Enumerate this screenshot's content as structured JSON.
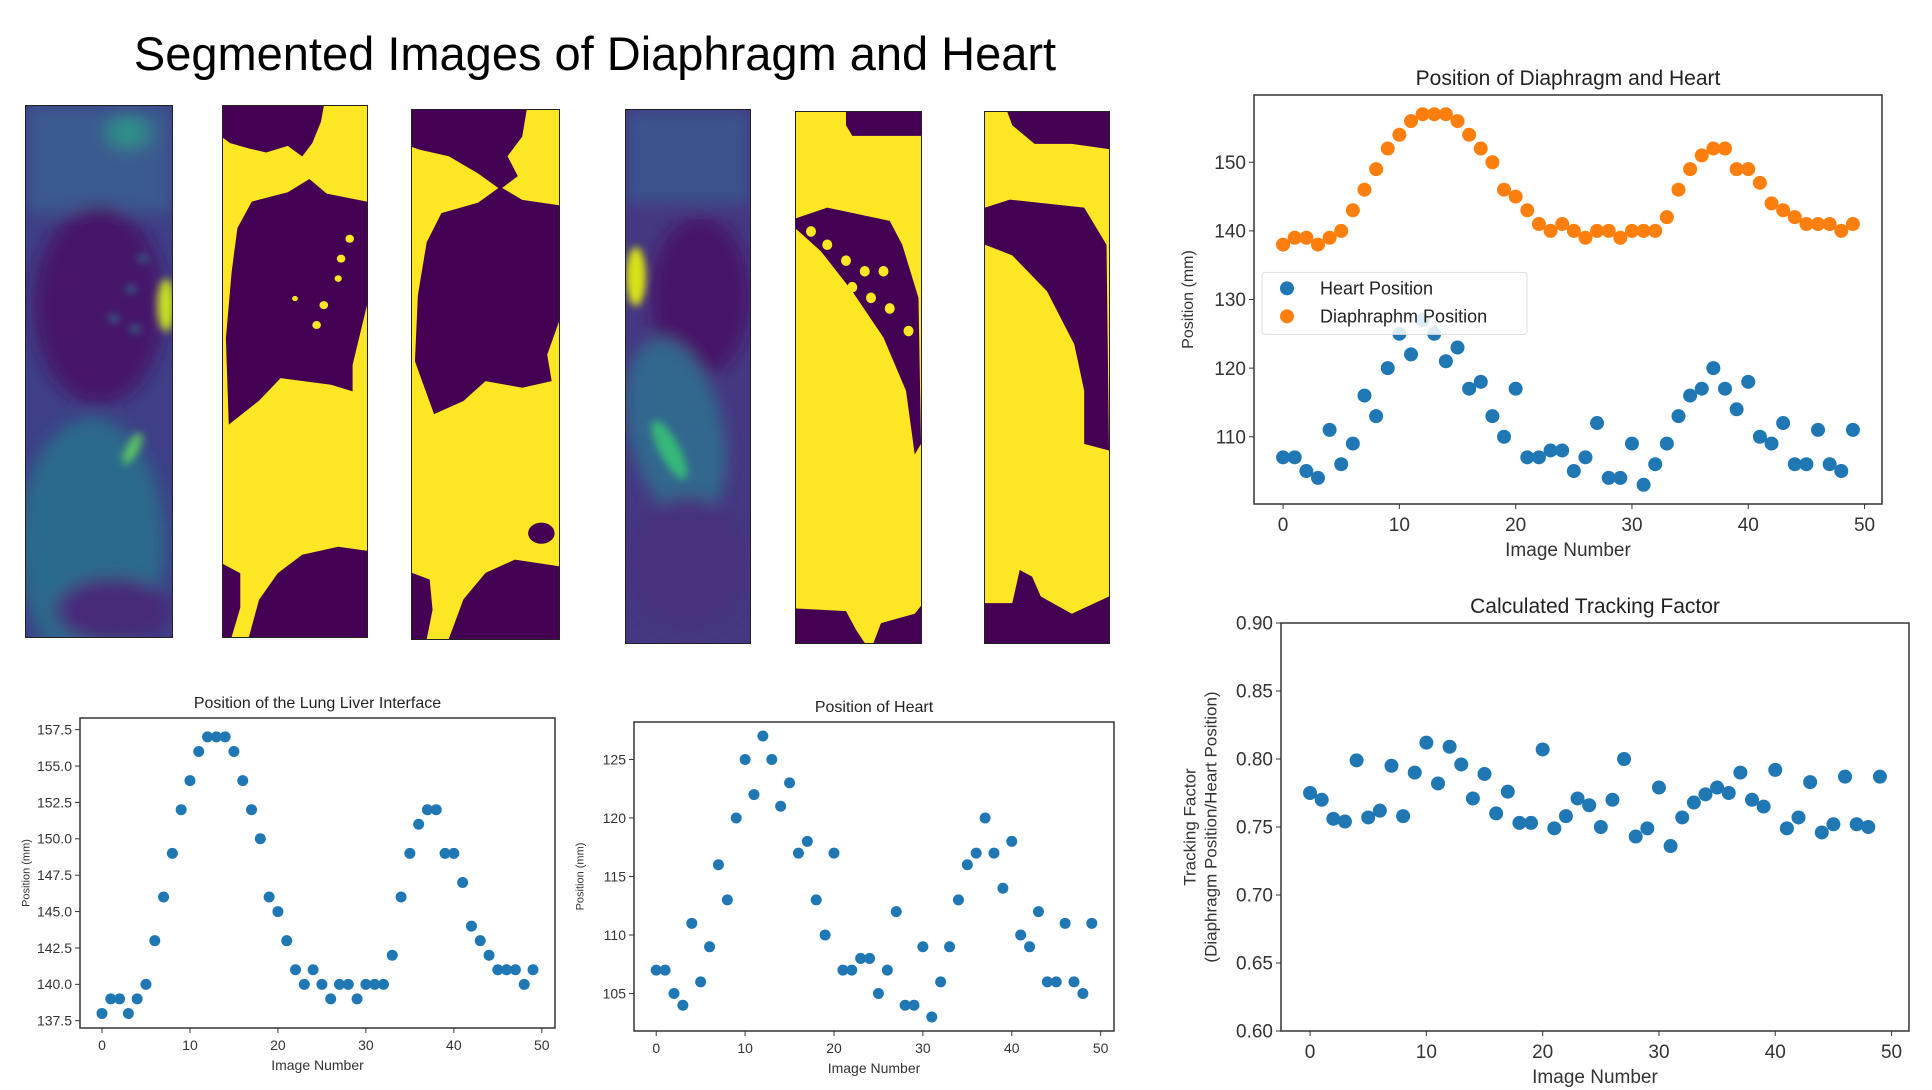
{
  "figure": {
    "title": "Segmented Images of Diaphragm and Heart",
    "colors": {
      "viridis_dark": "#440154",
      "viridis_yellow": "#fde725",
      "blue": "#1f77b4",
      "orange": "#ff7f0e"
    }
  },
  "chart_data": [
    {
      "type": "scatter",
      "title": "Position of the Lung Liver Interface",
      "xlabel": "Image Number",
      "ylabel": "Position (mm)",
      "xlim": [
        -2.5,
        51.5
      ],
      "ylim": [
        137.0,
        158.3
      ],
      "xticks": [
        "0",
        "10",
        "20",
        "30",
        "40",
        "50"
      ],
      "yticks": [
        "137.5",
        "140.0",
        "142.5",
        "145.0",
        "147.5",
        "150.0",
        "152.5",
        "155.0",
        "157.5"
      ],
      "grid": false,
      "series": [
        {
          "name": "Lung Liver Interface",
          "color": "#1f77b4",
          "y": [
            138,
            139,
            139,
            138,
            139,
            140,
            143,
            146,
            149,
            152,
            154,
            156,
            157,
            157,
            157,
            156,
            154,
            152,
            150,
            146,
            145,
            143,
            141,
            140,
            141,
            140,
            139,
            140,
            140,
            139,
            140,
            140,
            140,
            142,
            146,
            149,
            151,
            152,
            152,
            149,
            149,
            147,
            144,
            143,
            142,
            141,
            141,
            141,
            140,
            141
          ]
        }
      ]
    },
    {
      "type": "scatter",
      "title": "Position of Heart",
      "xlabel": "Image Number",
      "ylabel": "Position (mm)",
      "xlim": [
        -2.5,
        51.5
      ],
      "ylim": [
        101.8,
        128.2
      ],
      "xticks": [
        "0",
        "10",
        "20",
        "30",
        "40",
        "50"
      ],
      "yticks": [
        "105",
        "110",
        "115",
        "120",
        "125"
      ],
      "grid": false,
      "series": [
        {
          "name": "Heart",
          "color": "#1f77b4",
          "y": [
            107,
            107,
            105,
            104,
            111,
            106,
            109,
            116,
            113,
            120,
            125,
            122,
            127,
            125,
            121,
            123,
            117,
            118,
            113,
            110,
            117,
            107,
            107,
            108,
            108,
            105,
            107,
            112,
            104,
            104,
            109,
            103,
            106,
            109,
            113,
            116,
            117,
            120,
            117,
            114,
            118,
            110,
            109,
            112,
            106,
            106,
            111,
            106,
            105,
            111
          ]
        }
      ]
    },
    {
      "type": "scatter",
      "title": "Position of Diaphragm and Heart",
      "xlabel": "Image Number",
      "ylabel": "Position (mm)",
      "xlim": [
        -2.5,
        51.5
      ],
      "ylim": [
        100.2,
        159.8
      ],
      "xticks": [
        "0",
        "10",
        "20",
        "30",
        "40",
        "50"
      ],
      "yticks": [
        "110",
        "120",
        "130",
        "140",
        "150"
      ],
      "grid": false,
      "legend": "center-left",
      "series": [
        {
          "name": "Heart Position",
          "color": "#1f77b4",
          "y": [
            107,
            107,
            105,
            104,
            111,
            106,
            109,
            116,
            113,
            120,
            125,
            122,
            127,
            125,
            121,
            123,
            117,
            118,
            113,
            110,
            117,
            107,
            107,
            108,
            108,
            105,
            107,
            112,
            104,
            104,
            109,
            103,
            106,
            109,
            113,
            116,
            117,
            120,
            117,
            114,
            118,
            110,
            109,
            112,
            106,
            106,
            111,
            106,
            105,
            111
          ]
        },
        {
          "name": "Diaphraphm Position",
          "color": "#ff7f0e",
          "y": [
            138,
            139,
            139,
            138,
            139,
            140,
            143,
            146,
            149,
            152,
            154,
            156,
            157,
            157,
            157,
            156,
            154,
            152,
            150,
            146,
            145,
            143,
            141,
            140,
            141,
            140,
            139,
            140,
            140,
            139,
            140,
            140,
            140,
            142,
            146,
            149,
            151,
            152,
            152,
            149,
            149,
            147,
            144,
            143,
            142,
            141,
            141,
            141,
            140,
            141
          ]
        }
      ]
    },
    {
      "type": "scatter",
      "title": "Calculated Tracking Factor",
      "xlabel": "Image Number",
      "ylabel": "Tracking Factor",
      "ylabel2": "(Diaphragm Position/Heart Position)",
      "xlim": [
        -2.5,
        51.5
      ],
      "ylim": [
        0.6,
        0.9
      ],
      "xticks": [
        "0",
        "10",
        "20",
        "30",
        "40",
        "50"
      ],
      "yticks": [
        "0.60",
        "0.65",
        "0.70",
        "0.75",
        "0.80",
        "0.85",
        "0.90"
      ],
      "grid": false,
      "series": [
        {
          "name": "Tracking Factor",
          "color": "#1f77b4",
          "y": [
            0.775,
            0.77,
            0.756,
            0.754,
            0.799,
            0.757,
            0.762,
            0.795,
            0.758,
            0.79,
            0.812,
            0.782,
            0.809,
            0.796,
            0.771,
            0.789,
            0.76,
            0.776,
            0.753,
            0.753,
            0.807,
            0.749,
            0.758,
            0.771,
            0.766,
            0.75,
            0.77,
            0.8,
            0.743,
            0.749,
            0.779,
            0.736,
            0.757,
            0.768,
            0.774,
            0.779,
            0.775,
            0.79,
            0.77,
            0.765,
            0.792,
            0.749,
            0.757,
            0.783,
            0.746,
            0.752,
            0.787,
            0.752,
            0.75,
            0.787
          ]
        }
      ]
    }
  ]
}
